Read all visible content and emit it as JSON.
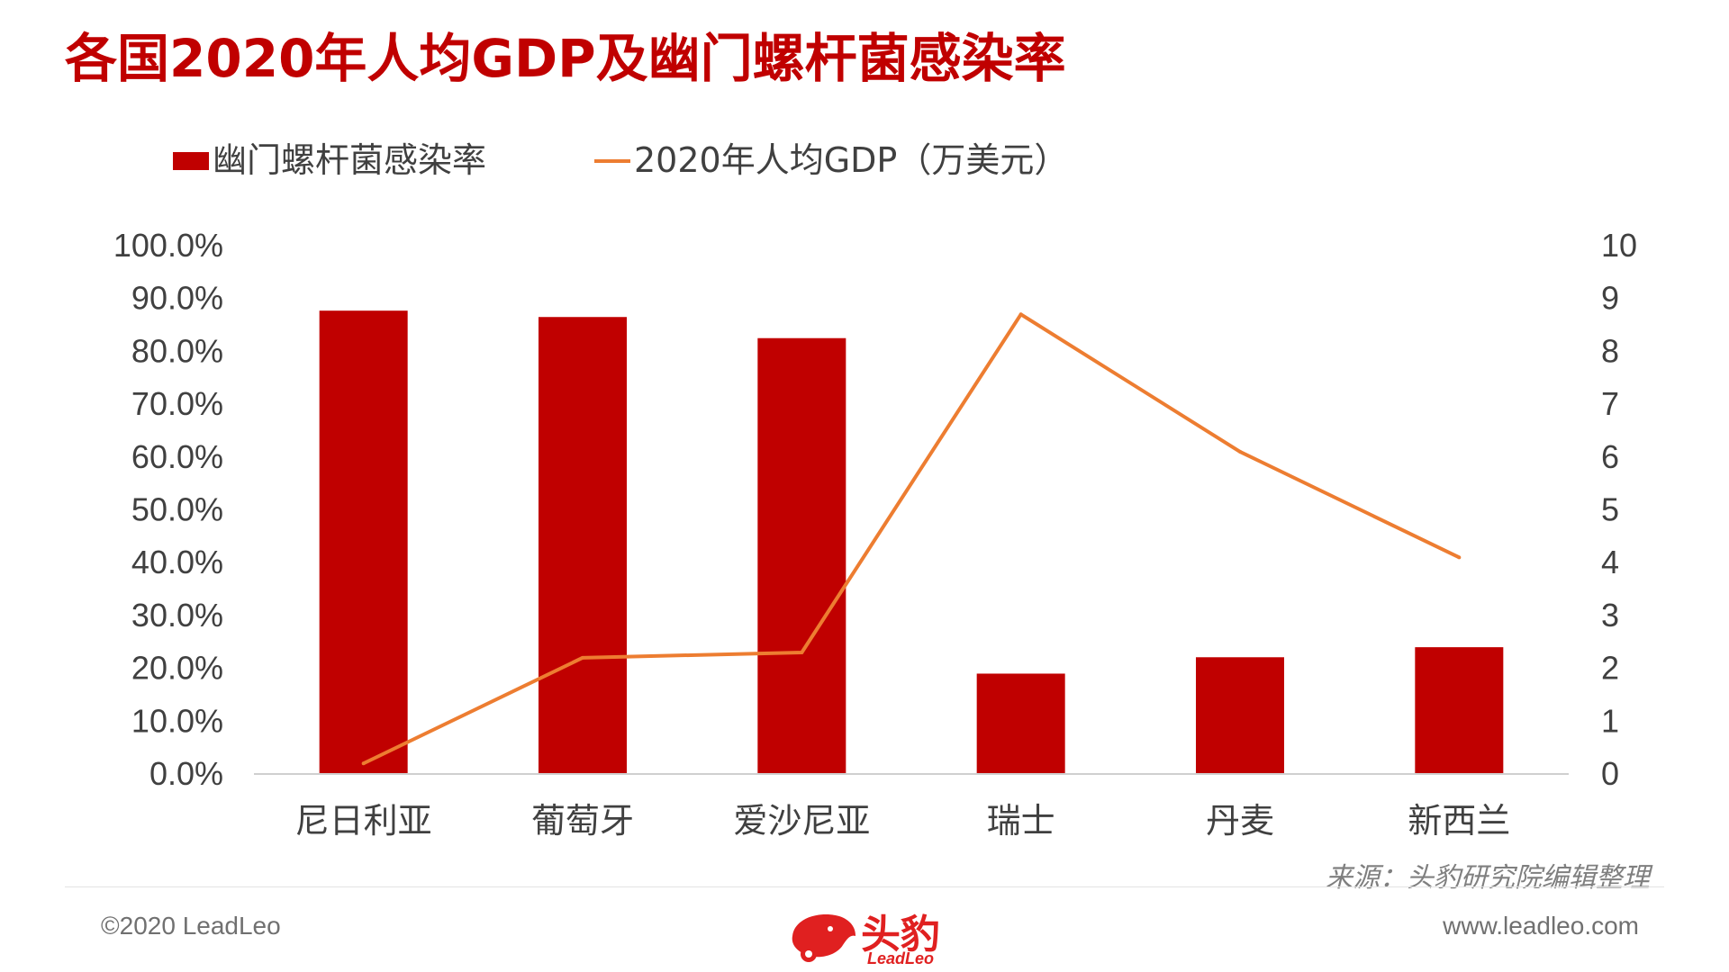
{
  "title": "各国2020年人均GDP及幽门螺杆菌感染率",
  "source": "来源：头豹研究院编辑整理",
  "footer": {
    "copyright": "©2020 LeadLeo",
    "website": "www.leadleo.com",
    "logo_text": "头豹",
    "logo_sub": "LeadLeo"
  },
  "colors": {
    "bar": "#c00000",
    "line": "#ed7d31",
    "title": "#c00000"
  },
  "chart_data": {
    "type": "bar+line",
    "categories": [
      "尼日利亚",
      "葡萄牙",
      "爱沙尼亚",
      "瑞士",
      "丹麦",
      "新西兰"
    ],
    "series": [
      {
        "name": "幽门螺杆菌感染率",
        "type": "bar",
        "axis": "left",
        "values": [
          87.7,
          86.5,
          82.5,
          19.0,
          22.1,
          24.0
        ]
      },
      {
        "name": "2020年人均GDP（万美元）",
        "type": "line",
        "axis": "right",
        "values": [
          0.2,
          2.2,
          2.3,
          8.7,
          6.1,
          4.1
        ]
      }
    ],
    "left_axis": {
      "min": 0,
      "max": 100,
      "step": 10,
      "tick_labels": [
        "0.0%",
        "10.0%",
        "20.0%",
        "30.0%",
        "40.0%",
        "50.0%",
        "60.0%",
        "70.0%",
        "80.0%",
        "90.0%",
        "100.0%"
      ]
    },
    "right_axis": {
      "min": 0,
      "max": 10,
      "step": 1,
      "tick_labels": [
        "0",
        "1",
        "2",
        "3",
        "4",
        "5",
        "6",
        "7",
        "8",
        "9",
        "10"
      ]
    },
    "legend_position": "top-left",
    "grid": false
  }
}
